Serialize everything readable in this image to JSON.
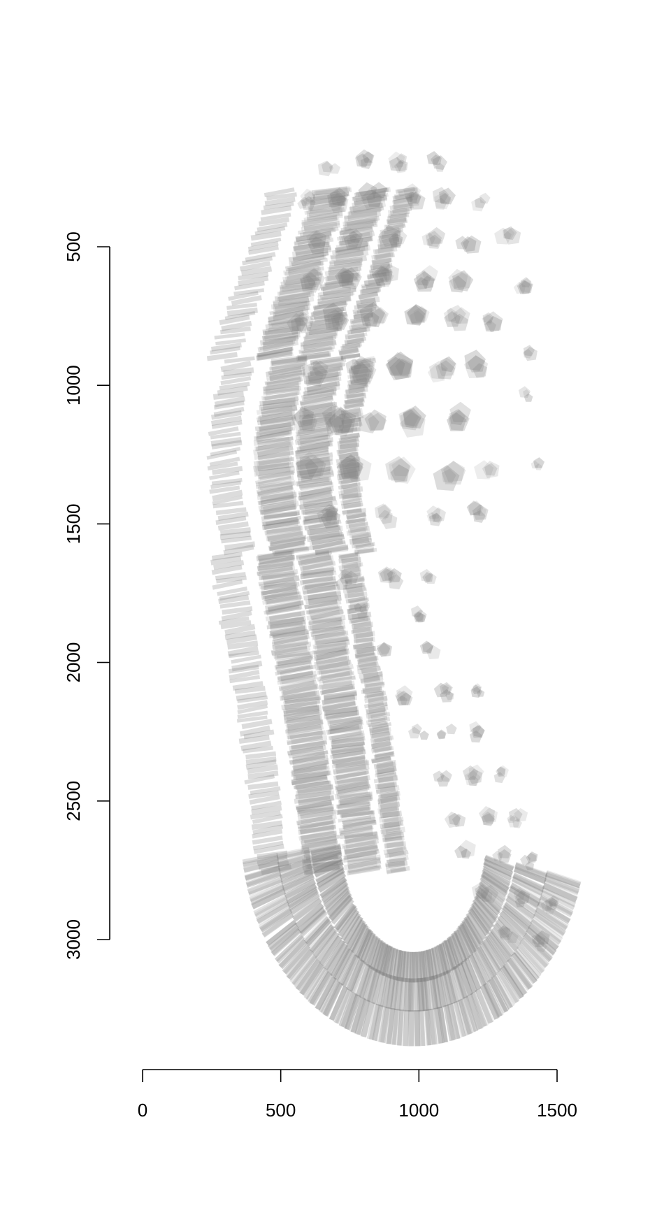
{
  "chart_data": {
    "type": "scatter",
    "title": "",
    "xlabel": "",
    "ylabel": "",
    "xlim": [
      0,
      1500
    ],
    "ylim": [
      3000,
      500
    ],
    "y_axis_reversed": true,
    "x_ticks": [
      {
        "value": 0,
        "label": "0"
      },
      {
        "value": 500,
        "label": "500"
      },
      {
        "value": 1000,
        "label": "1000"
      },
      {
        "value": 1500,
        "label": "1500"
      }
    ],
    "y_ticks": [
      {
        "value": 500,
        "label": "500"
      },
      {
        "value": 1000,
        "label": "1000"
      },
      {
        "value": 1500,
        "label": "1500"
      },
      {
        "value": 2000,
        "label": "2000"
      },
      {
        "value": 2500,
        "label": "2500"
      },
      {
        "value": 3000,
        "label": "3000"
      }
    ],
    "grid": false,
    "legend": "none",
    "mark_color": "#808080",
    "description_of_marks": "semi-transparent overlapping grey shoe-sole tread impressions",
    "hex_lugs": [
      {
        "x": 600,
        "y": 1130,
        "r": 42
      },
      {
        "x": 705,
        "y": 1130,
        "r": 45
      },
      {
        "x": 830,
        "y": 1130,
        "r": 48
      },
      {
        "x": 975,
        "y": 1130,
        "r": 48
      },
      {
        "x": 1145,
        "y": 1120,
        "r": 44
      },
      {
        "x": 610,
        "y": 1310,
        "r": 44
      },
      {
        "x": 765,
        "y": 1315,
        "r": 42
      },
      {
        "x": 935,
        "y": 1315,
        "r": 40
      },
      {
        "x": 1110,
        "y": 1320,
        "r": 40
      },
      {
        "x": 1250,
        "y": 1290,
        "r": 30
      },
      {
        "x": 630,
        "y": 950,
        "r": 40
      },
      {
        "x": 780,
        "y": 945,
        "r": 44
      },
      {
        "x": 935,
        "y": 945,
        "r": 44
      },
      {
        "x": 1085,
        "y": 940,
        "r": 42
      },
      {
        "x": 1210,
        "y": 930,
        "r": 38
      },
      {
        "x": 570,
        "y": 775,
        "r": 36
      },
      {
        "x": 705,
        "y": 760,
        "r": 38
      },
      {
        "x": 840,
        "y": 760,
        "r": 38
      },
      {
        "x": 995,
        "y": 760,
        "r": 38
      },
      {
        "x": 1135,
        "y": 760,
        "r": 36
      },
      {
        "x": 1255,
        "y": 770,
        "r": 30
      },
      {
        "x": 605,
        "y": 620,
        "r": 34
      },
      {
        "x": 740,
        "y": 615,
        "r": 36
      },
      {
        "x": 880,
        "y": 615,
        "r": 36
      },
      {
        "x": 1020,
        "y": 615,
        "r": 34
      },
      {
        "x": 1150,
        "y": 620,
        "r": 32
      },
      {
        "x": 635,
        "y": 480,
        "r": 32
      },
      {
        "x": 770,
        "y": 470,
        "r": 34
      },
      {
        "x": 910,
        "y": 470,
        "r": 34
      },
      {
        "x": 1045,
        "y": 470,
        "r": 30
      },
      {
        "x": 1175,
        "y": 480,
        "r": 28
      },
      {
        "x": 595,
        "y": 335,
        "r": 26
      },
      {
        "x": 715,
        "y": 330,
        "r": 30
      },
      {
        "x": 835,
        "y": 315,
        "r": 34
      },
      {
        "x": 975,
        "y": 320,
        "r": 30
      },
      {
        "x": 1095,
        "y": 330,
        "r": 26
      },
      {
        "x": 1230,
        "y": 340,
        "r": 24
      },
      {
        "x": 680,
        "y": 220,
        "r": 24
      },
      {
        "x": 800,
        "y": 190,
        "r": 30
      },
      {
        "x": 935,
        "y": 200,
        "r": 26
      },
      {
        "x": 1060,
        "y": 200,
        "r": 22
      },
      {
        "x": 1320,
        "y": 460,
        "r": 26
      },
      {
        "x": 1370,
        "y": 640,
        "r": 22
      },
      {
        "x": 1410,
        "y": 870,
        "r": 22
      },
      {
        "x": 1400,
        "y": 1030,
        "r": 18
      },
      {
        "x": 1430,
        "y": 1300,
        "r": 18
      },
      {
        "x": 665,
        "y": 1470,
        "r": 30
      },
      {
        "x": 880,
        "y": 1475,
        "r": 26
      },
      {
        "x": 1055,
        "y": 1480,
        "r": 26
      },
      {
        "x": 1210,
        "y": 1460,
        "r": 24
      },
      {
        "x": 740,
        "y": 1700,
        "r": 24
      },
      {
        "x": 900,
        "y": 1695,
        "r": 26
      },
      {
        "x": 1030,
        "y": 1700,
        "r": 24
      },
      {
        "x": 790,
        "y": 1820,
        "r": 20
      },
      {
        "x": 1010,
        "y": 1825,
        "r": 20
      },
      {
        "x": 870,
        "y": 1970,
        "r": 26
      },
      {
        "x": 1035,
        "y": 1960,
        "r": 22
      },
      {
        "x": 950,
        "y": 2130,
        "r": 26
      },
      {
        "x": 1100,
        "y": 2110,
        "r": 22
      },
      {
        "x": 1220,
        "y": 2110,
        "r": 20
      },
      {
        "x": 1000,
        "y": 2260,
        "r": 24
      },
      {
        "x": 1100,
        "y": 2250,
        "r": 24
      },
      {
        "x": 1210,
        "y": 2250,
        "r": 20
      },
      {
        "x": 1090,
        "y": 2420,
        "r": 24
      },
      {
        "x": 1190,
        "y": 2410,
        "r": 24
      },
      {
        "x": 1300,
        "y": 2400,
        "r": 20
      },
      {
        "x": 1130,
        "y": 2560,
        "r": 26
      },
      {
        "x": 1240,
        "y": 2560,
        "r": 26
      },
      {
        "x": 1350,
        "y": 2570,
        "r": 22
      },
      {
        "x": 1170,
        "y": 2690,
        "r": 28
      },
      {
        "x": 1300,
        "y": 2690,
        "r": 28
      },
      {
        "x": 1400,
        "y": 2720,
        "r": 22
      },
      {
        "x": 1240,
        "y": 2830,
        "r": 28
      },
      {
        "x": 1360,
        "y": 2850,
        "r": 26
      },
      {
        "x": 1470,
        "y": 2880,
        "r": 20
      },
      {
        "x": 1320,
        "y": 2980,
        "r": 24
      },
      {
        "x": 1440,
        "y": 3010,
        "r": 22
      }
    ],
    "curved_bands": [
      {
        "offset_x": 0,
        "thickness": 110
      },
      {
        "offset_x": 170,
        "thickness": 130
      },
      {
        "offset_x": 320,
        "thickness": 120
      },
      {
        "offset_x": 470,
        "thickness": 70
      }
    ],
    "heel_arcs": [
      {
        "cx": 980,
        "cy": 2600,
        "rx": 560,
        "ry": 720,
        "thickness": 130
      },
      {
        "cx": 980,
        "cy": 2600,
        "rx": 440,
        "ry": 600,
        "thickness": 120
      },
      {
        "cx": 980,
        "cy": 2600,
        "rx": 320,
        "ry": 500,
        "thickness": 110
      }
    ]
  }
}
